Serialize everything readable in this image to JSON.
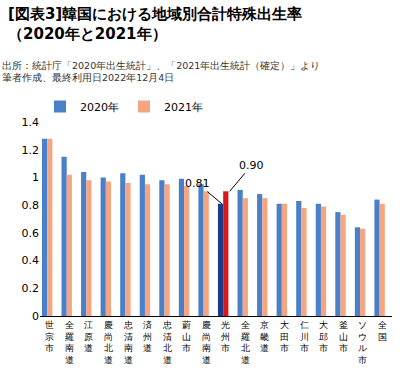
{
  "chart_data": {
    "type": "bar",
    "title": [
      "[図表3]韓国における地域別合計特殊出生率",
      "（2020年と2021年）"
    ],
    "subtitle": [
      "出所：統計庁「2020年出生統計」、「2021年出生統計（確定）」より",
      "筆者作成、最終利用日2022年12月4日"
    ],
    "categories": [
      "世宗市",
      "全羅南道",
      "江原道",
      "慶尚北道",
      "忠清南道",
      "済州道",
      "忠清北道",
      "蔚山市",
      "慶尚南道",
      "光州市",
      "全羅北道",
      "京畿道",
      "大田市",
      "仁川市",
      "大邱市",
      "釜山市",
      "ソウル市",
      "全国"
    ],
    "series": [
      {
        "name": "2020年",
        "color": "#4a7fc9",
        "colors": [
          "#4a7fc9",
          "#4a7fc9",
          "#4a7fc9",
          "#4a7fc9",
          "#4a7fc9",
          "#4a7fc9",
          "#4a7fc9",
          "#4a7fc9",
          "#4a7fc9",
          "#1a3a8a",
          "#4a7fc9",
          "#4a7fc9",
          "#4a7fc9",
          "#4a7fc9",
          "#4a7fc9",
          "#4a7fc9",
          "#4a7fc9",
          "#4a7fc9"
        ],
        "values": [
          1.28,
          1.15,
          1.04,
          1.0,
          1.03,
          1.02,
          0.98,
          0.99,
          0.95,
          0.81,
          0.91,
          0.88,
          0.81,
          0.83,
          0.81,
          0.75,
          0.64,
          0.84
        ]
      },
      {
        "name": "2021年",
        "color": "#f4a582",
        "colors": [
          "#f4a582",
          "#f4a582",
          "#f4a582",
          "#f4a582",
          "#f4a582",
          "#f4a582",
          "#f4a582",
          "#f4a582",
          "#f4a582",
          "#d7191c",
          "#f4a582",
          "#f4a582",
          "#f4a582",
          "#f4a582",
          "#f4a582",
          "#f4a582",
          "#f4a582",
          "#f4a582"
        ],
        "values": [
          1.28,
          1.02,
          0.98,
          0.97,
          0.96,
          0.95,
          0.95,
          0.94,
          0.9,
          0.9,
          0.85,
          0.85,
          0.81,
          0.78,
          0.79,
          0.73,
          0.63,
          0.81
        ]
      }
    ],
    "annotations": [
      {
        "text": "0.81",
        "category": "光州市",
        "series": "2020年",
        "value": 0.81
      },
      {
        "text": "0.90",
        "category": "光州市",
        "series": "2021年",
        "value": 0.9
      }
    ],
    "ylim": [
      0,
      1.4
    ],
    "yticks": [
      0,
      0.2,
      0.4,
      0.6,
      0.8,
      1.0,
      1.2,
      1.4
    ],
    "grid": false,
    "legend": "top-left"
  }
}
